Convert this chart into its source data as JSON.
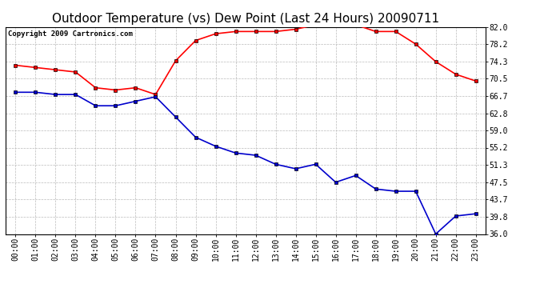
{
  "title": "Outdoor Temperature (vs) Dew Point (Last 24 Hours) 20090711",
  "copyright": "Copyright 2009 Cartronics.com",
  "hours": [
    "00:00",
    "01:00",
    "02:00",
    "03:00",
    "04:00",
    "05:00",
    "06:00",
    "07:00",
    "08:00",
    "09:00",
    "10:00",
    "11:00",
    "12:00",
    "13:00",
    "14:00",
    "15:00",
    "16:00",
    "17:00",
    "18:00",
    "19:00",
    "20:00",
    "21:00",
    "22:00",
    "23:00"
  ],
  "temp": [
    73.5,
    73.0,
    72.5,
    72.0,
    68.5,
    68.0,
    68.5,
    67.0,
    74.5,
    79.0,
    80.5,
    81.0,
    81.0,
    81.0,
    81.5,
    82.5,
    82.5,
    82.5,
    81.0,
    81.0,
    78.2,
    74.3,
    71.5,
    70.0
  ],
  "dew": [
    67.5,
    67.5,
    67.0,
    67.0,
    64.5,
    64.5,
    65.5,
    66.5,
    62.0,
    57.5,
    55.5,
    54.0,
    53.5,
    51.5,
    50.5,
    51.5,
    47.5,
    49.0,
    46.0,
    45.5,
    45.5,
    36.0,
    40.0,
    40.5
  ],
  "temp_color": "#ff0000",
  "dew_color": "#0000cc",
  "bg_color": "#ffffff",
  "plot_bg_color": "#ffffff",
  "grid_color": "#bbbbbb",
  "ylim_min": 36.0,
  "ylim_max": 82.0,
  "yticks": [
    36.0,
    39.8,
    43.7,
    47.5,
    51.3,
    55.2,
    59.0,
    62.8,
    66.7,
    70.5,
    74.3,
    78.2,
    82.0
  ],
  "title_fontsize": 11,
  "copyright_fontsize": 6.5,
  "tick_fontsize": 7,
  "marker": "s",
  "marker_size": 3,
  "line_width": 1.2
}
